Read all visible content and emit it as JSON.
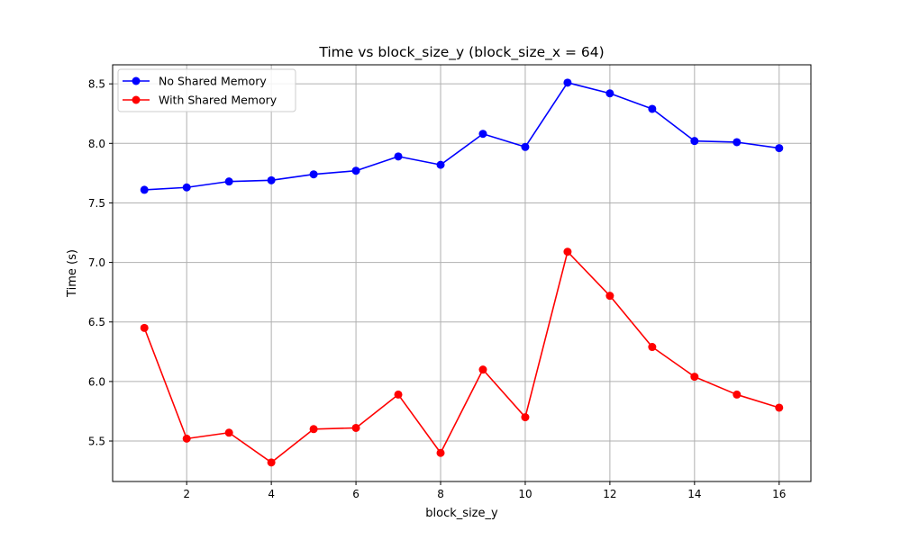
{
  "chart_data": {
    "type": "line",
    "title": "Time vs block_size_y (block_size_x = 64)",
    "xlabel": "block_size_y",
    "ylabel": "Time (s)",
    "x": [
      1,
      2,
      3,
      4,
      5,
      6,
      7,
      8,
      9,
      10,
      11,
      12,
      13,
      14,
      15,
      16
    ],
    "xlim": [
      0.25,
      16.75
    ],
    "ylim": [
      5.16,
      8.66
    ],
    "xticks": [
      2,
      4,
      6,
      8,
      10,
      12,
      14,
      16
    ],
    "xtick_labels": [
      "2",
      "4",
      "6",
      "8",
      "10",
      "12",
      "14",
      "16"
    ],
    "yticks": [
      5.5,
      6.0,
      6.5,
      7.0,
      7.5,
      8.0,
      8.5
    ],
    "ytick_labels": [
      "5.5",
      "6.0",
      "6.5",
      "7.0",
      "7.5",
      "8.0",
      "8.5"
    ],
    "grid": true,
    "legend_position": "top-left",
    "series": [
      {
        "name": "No Shared Memory",
        "color": "#0000ff",
        "marker": "circle",
        "values": [
          7.61,
          7.63,
          7.68,
          7.69,
          7.74,
          7.77,
          7.89,
          7.82,
          8.08,
          7.97,
          8.51,
          8.42,
          8.29,
          8.02,
          8.01,
          7.96
        ]
      },
      {
        "name": "With Shared Memory",
        "color": "#ff0000",
        "marker": "circle",
        "values": [
          6.45,
          5.52,
          5.57,
          5.32,
          5.6,
          5.61,
          5.89,
          5.4,
          6.1,
          5.7,
          7.09,
          6.72,
          6.29,
          6.04,
          5.89,
          5.78
        ]
      }
    ]
  }
}
